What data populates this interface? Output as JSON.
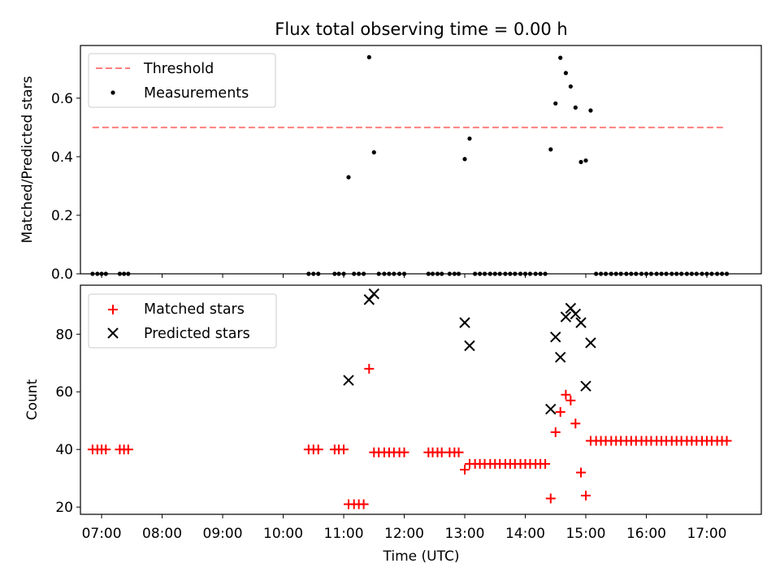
{
  "chart_data": [
    {
      "type": "scatter",
      "title": "Flux total observing time = 0.00 h",
      "xlabel": "",
      "ylabel": "Matched/Predicted stars",
      "xlim": [
        6.65,
        17.9
      ],
      "ylim": [
        0.0,
        0.78
      ],
      "yticks": [
        0.0,
        0.2,
        0.4,
        0.6
      ],
      "ytick_labels": [
        "0.0",
        "0.2",
        "0.4",
        "0.6"
      ],
      "legend_position": "upper-left",
      "threshold": {
        "name": "Threshold",
        "value": 0.5,
        "x_start": 6.85,
        "x_end": 17.3,
        "color": "#ff7f7f"
      },
      "measurements": {
        "name": "Measurements",
        "color": "#000000",
        "x": [
          6.85,
          6.93,
          7.0,
          7.07,
          7.3,
          7.37,
          7.44,
          10.42,
          10.5,
          10.58,
          10.85,
          10.92,
          11.0,
          11.08,
          11.17,
          11.25,
          11.33,
          11.42,
          11.5,
          11.58,
          11.67,
          11.75,
          11.83,
          11.92,
          12.0,
          12.4,
          12.47,
          12.55,
          12.62,
          12.75,
          12.83,
          12.9,
          13.0,
          13.08,
          13.17,
          13.25,
          13.33,
          13.42,
          13.5,
          13.58,
          13.67,
          13.75,
          13.83,
          13.92,
          14.0,
          14.08,
          14.17,
          14.25,
          14.33,
          14.42,
          14.5,
          14.58,
          14.67,
          14.75,
          14.83,
          14.92,
          15.0,
          15.08,
          15.17,
          15.25,
          15.33,
          15.42,
          15.5,
          15.58,
          15.67,
          15.75,
          15.83,
          15.92,
          16.0,
          16.08,
          16.17,
          16.25,
          16.33,
          16.42,
          16.5,
          16.58,
          16.67,
          16.75,
          16.83,
          16.92,
          17.0,
          17.08,
          17.17,
          17.25,
          17.33
        ],
        "y": [
          0,
          0,
          0,
          0,
          0,
          0,
          0,
          0,
          0,
          0,
          0,
          0,
          0,
          0.33,
          0,
          0,
          0,
          0.74,
          0.415,
          0,
          0,
          0,
          0,
          0,
          0,
          0,
          0,
          0,
          0,
          0,
          0,
          0,
          0.392,
          0.462,
          0,
          0,
          0,
          0,
          0,
          0,
          0,
          0,
          0,
          0,
          0,
          0,
          0,
          0,
          0,
          0.425,
          0.582,
          0.738,
          0.686,
          0.64,
          0.568,
          0.382,
          0.387,
          0.558,
          0,
          0,
          0,
          0,
          0,
          0,
          0,
          0,
          0,
          0,
          0,
          0,
          0,
          0,
          0,
          0,
          0,
          0,
          0,
          0,
          0,
          0,
          0,
          0,
          0,
          0,
          0
        ]
      }
    },
    {
      "type": "scatter",
      "title": "",
      "xlabel": "Time (UTC)",
      "ylabel": "Count",
      "xlim": [
        6.65,
        17.9
      ],
      "ylim": [
        17.5,
        97
      ],
      "yticks": [
        20,
        40,
        60,
        80
      ],
      "ytick_labels": [
        "20",
        "40",
        "60",
        "80"
      ],
      "xticks": [
        7,
        8,
        9,
        10,
        11,
        12,
        13,
        14,
        15,
        16,
        17
      ],
      "xtick_labels": [
        "07:00",
        "08:00",
        "09:00",
        "10:00",
        "11:00",
        "12:00",
        "13:00",
        "14:00",
        "15:00",
        "16:00",
        "17:00"
      ],
      "legend_position": "upper-left",
      "series": [
        {
          "name": "Matched stars",
          "marker": "plus",
          "color": "#ff0000",
          "x": [
            6.85,
            6.93,
            7.0,
            7.07,
            7.3,
            7.37,
            7.44,
            10.42,
            10.5,
            10.58,
            10.85,
            10.92,
            11.0,
            11.08,
            11.17,
            11.25,
            11.33,
            11.42,
            11.5,
            11.58,
            11.67,
            11.75,
            11.83,
            11.92,
            12.0,
            12.4,
            12.47,
            12.55,
            12.62,
            12.75,
            12.83,
            12.9,
            13.0,
            13.08,
            13.17,
            13.25,
            13.33,
            13.42,
            13.5,
            13.58,
            13.67,
            13.75,
            13.83,
            13.92,
            14.0,
            14.08,
            14.17,
            14.25,
            14.33,
            14.42,
            14.5,
            14.58,
            14.67,
            14.75,
            14.83,
            14.92,
            15.0,
            15.08,
            15.17,
            15.25,
            15.33,
            15.42,
            15.5,
            15.58,
            15.67,
            15.75,
            15.83,
            15.92,
            16.0,
            16.08,
            16.17,
            16.25,
            16.33,
            16.42,
            16.5,
            16.58,
            16.67,
            16.75,
            16.83,
            16.92,
            17.0,
            17.08,
            17.17,
            17.25,
            17.33
          ],
          "y": [
            40,
            40,
            40,
            40,
            40,
            40,
            40,
            40,
            40,
            40,
            40,
            40,
            40,
            21,
            21,
            21,
            21,
            68,
            39,
            39,
            39,
            39,
            39,
            39,
            39,
            39,
            39,
            39,
            39,
            39,
            39,
            39,
            33,
            35,
            35,
            35,
            35,
            35,
            35,
            35,
            35,
            35,
            35,
            35,
            35,
            35,
            35,
            35,
            35,
            23,
            46,
            53,
            59,
            57,
            49,
            32,
            24,
            43,
            43,
            43,
            43,
            43,
            43,
            43,
            43,
            43,
            43,
            43,
            43,
            43,
            43,
            43,
            43,
            43,
            43,
            43,
            43,
            43,
            43,
            43,
            43,
            43,
            43,
            43,
            43
          ]
        },
        {
          "name": "Predicted stars",
          "marker": "x",
          "color": "#000000",
          "x": [
            11.08,
            11.42,
            11.5,
            13.0,
            13.08,
            14.42,
            14.5,
            14.58,
            14.67,
            14.75,
            14.83,
            14.92,
            15.0,
            15.08
          ],
          "y": [
            64,
            92,
            94,
            84,
            76,
            54,
            79,
            72,
            86,
            89,
            87,
            84,
            62,
            77
          ]
        }
      ]
    }
  ]
}
